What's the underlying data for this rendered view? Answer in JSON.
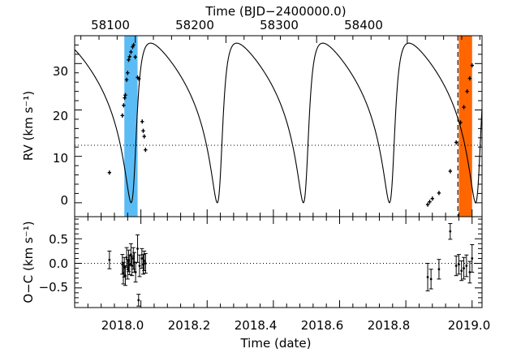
{
  "chart_data": [
    {
      "panel": "top",
      "type": "scatter",
      "top_axis_label": "Time (BJD−2400000.0)",
      "top_ticks": [
        "58100",
        "58200",
        "58300",
        "58400"
      ],
      "ylabel": "RV (km s⁻¹)",
      "y_ticks": [
        "0",
        "10",
        "20",
        "30"
      ],
      "xlim": [
        2017.8,
        2019.03
      ],
      "ylim": [
        -3,
        36
      ],
      "reference_line": {
        "y": 12.4,
        "style": "dotted"
      },
      "model_curve": {
        "style": "solid",
        "min": 0,
        "max": 34.4,
        "phase_peaks_at": [
          2017.98,
          2018.24,
          2018.5,
          2018.76,
          2019.02
        ]
      },
      "shaded_regions": [
        {
          "from": 2017.95,
          "to": 2017.99,
          "color": "#5bbcf5"
        },
        {
          "from": 2018.96,
          "to": 2019.0,
          "color": "#ff6600",
          "dashed_line_at": 2018.957
        }
      ],
      "points": [
        {
          "x": 2017.905,
          "y": 6.5
        },
        {
          "x": 2017.944,
          "y": 18.8
        },
        {
          "x": 2017.948,
          "y": 21.0
        },
        {
          "x": 2017.951,
          "y": 22.6
        },
        {
          "x": 2017.953,
          "y": 23.2
        },
        {
          "x": 2017.957,
          "y": 26.5
        },
        {
          "x": 2017.96,
          "y": 28.0
        },
        {
          "x": 2017.963,
          "y": 30.8
        },
        {
          "x": 2017.966,
          "y": 31.5
        },
        {
          "x": 2017.97,
          "y": 32.5
        },
        {
          "x": 2017.975,
          "y": 33.6
        },
        {
          "x": 2017.978,
          "y": 34.0
        },
        {
          "x": 2017.983,
          "y": 31.4
        },
        {
          "x": 2017.99,
          "y": 27.0
        },
        {
          "x": 2017.994,
          "y": 26.7
        },
        {
          "x": 2018.004,
          "y": 17.5
        },
        {
          "x": 2018.007,
          "y": 15.5
        },
        {
          "x": 2018.01,
          "y": 14.3
        },
        {
          "x": 2018.014,
          "y": 11.4
        },
        {
          "x": 2018.866,
          "y": -0.4
        },
        {
          "x": 2018.872,
          "y": 0.2
        },
        {
          "x": 2018.88,
          "y": 0.9
        },
        {
          "x": 2018.9,
          "y": 2.1
        },
        {
          "x": 2018.934,
          "y": 6.8
        },
        {
          "x": 2018.952,
          "y": 13.0
        },
        {
          "x": 2018.965,
          "y": 17.3
        },
        {
          "x": 2018.975,
          "y": 20.6
        },
        {
          "x": 2018.985,
          "y": 24.0
        },
        {
          "x": 2018.993,
          "y": 26.8
        },
        {
          "x": 2019.0,
          "y": 29.6
        }
      ]
    },
    {
      "panel": "bottom",
      "type": "scatter",
      "xlabel": "Time (date)",
      "ylabel": "O−C (km s⁻¹)",
      "x_ticks": [
        "2018.0",
        "2018.2",
        "2018.4",
        "2018.6",
        "2018.8",
        "2019.0"
      ],
      "y_ticks": [
        "−0.5",
        "0.0",
        "0.5"
      ],
      "xlim": [
        2017.8,
        2019.03
      ],
      "ylim": [
        -0.9,
        0.95
      ],
      "reference_line": {
        "y": 0.0,
        "style": "dotted"
      },
      "points": [
        {
          "x": 2017.905,
          "y": 0.07,
          "err": 0.18
        },
        {
          "x": 2017.944,
          "y": -0.02,
          "err": 0.2
        },
        {
          "x": 2017.947,
          "y": -0.2,
          "err": 0.22
        },
        {
          "x": 2017.95,
          "y": -0.08,
          "err": 0.2
        },
        {
          "x": 2017.953,
          "y": -0.25,
          "err": 0.2
        },
        {
          "x": 2017.957,
          "y": 0.12,
          "err": 0.2
        },
        {
          "x": 2017.96,
          "y": -0.12,
          "err": 0.2
        },
        {
          "x": 2017.963,
          "y": 0.05,
          "err": 0.22
        },
        {
          "x": 2017.966,
          "y": -0.03,
          "err": 0.2
        },
        {
          "x": 2017.97,
          "y": 0.18,
          "err": 0.22
        },
        {
          "x": 2017.973,
          "y": -0.05,
          "err": 0.2
        },
        {
          "x": 2017.977,
          "y": 0.1,
          "err": 0.22
        },
        {
          "x": 2017.98,
          "y": 0.02,
          "err": 0.2
        },
        {
          "x": 2017.984,
          "y": -0.18,
          "err": 0.2
        },
        {
          "x": 2017.99,
          "y": 0.3,
          "err": 0.28
        },
        {
          "x": 2017.993,
          "y": -0.75,
          "err": 0.12
        },
        {
          "x": 2017.996,
          "y": -0.05,
          "err": 0.22
        },
        {
          "x": 2018.003,
          "y": 0.1,
          "err": 0.2
        },
        {
          "x": 2018.007,
          "y": -0.02,
          "err": 0.2
        },
        {
          "x": 2018.01,
          "y": 0.05,
          "err": 0.2
        },
        {
          "x": 2018.014,
          "y": 0.0,
          "err": 0.2
        },
        {
          "x": 2018.866,
          "y": -0.28,
          "err": 0.28
        },
        {
          "x": 2018.876,
          "y": -0.32,
          "err": 0.2
        },
        {
          "x": 2018.9,
          "y": -0.12,
          "err": 0.2
        },
        {
          "x": 2018.934,
          "y": 0.65,
          "err": 0.16
        },
        {
          "x": 2018.952,
          "y": -0.05,
          "err": 0.2
        },
        {
          "x": 2018.96,
          "y": -0.02,
          "err": 0.2
        },
        {
          "x": 2018.968,
          "y": -0.15,
          "err": 0.2
        },
        {
          "x": 2018.975,
          "y": -0.1,
          "err": 0.22
        },
        {
          "x": 2018.983,
          "y": -0.05,
          "err": 0.22
        },
        {
          "x": 2018.993,
          "y": -0.18,
          "err": 0.22
        },
        {
          "x": 2019.0,
          "y": 0.1,
          "err": 0.28
        }
      ]
    }
  ]
}
